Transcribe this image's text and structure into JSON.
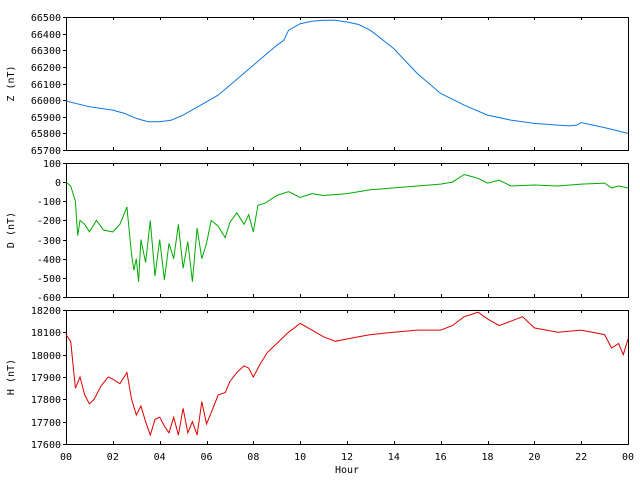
{
  "chart_data": {
    "type": "line",
    "xlabel": "Hour",
    "x_ticks": [
      "00",
      "02",
      "04",
      "06",
      "08",
      "10",
      "12",
      "14",
      "16",
      "18",
      "20",
      "22",
      "00"
    ],
    "xlim_hours": [
      0,
      24
    ],
    "panels": [
      {
        "ylabel": "Z (nT)",
        "color": "#1177dd",
        "ylim": [
          65700,
          66500
        ],
        "yticks": [
          65700,
          65800,
          65900,
          66000,
          66100,
          66200,
          66300,
          66400,
          66500
        ],
        "series": {
          "x": [
            0,
            1,
            2,
            2.5,
            3,
            3.5,
            4,
            4.5,
            5,
            6,
            6.5,
            7,
            8,
            8.5,
            9,
            9.3,
            9.5,
            10,
            10.5,
            11,
            11.5,
            12,
            12.5,
            13,
            14,
            15,
            16,
            17,
            18,
            19,
            20,
            21,
            21.5,
            21.8,
            22,
            22.5,
            23,
            24
          ],
          "y": [
            65995,
            65960,
            65940,
            65920,
            65890,
            65870,
            65870,
            65880,
            65910,
            65990,
            66030,
            66090,
            66210,
            66270,
            66330,
            66360,
            66420,
            66460,
            66475,
            66480,
            66480,
            66470,
            66455,
            66420,
            66310,
            66160,
            66040,
            65970,
            65910,
            65880,
            65860,
            65850,
            65845,
            65850,
            65865,
            65850,
            65835,
            65800
          ]
        }
      },
      {
        "ylabel": "D (nT)",
        "color": "#00aa00",
        "ylim": [
          -600,
          100
        ],
        "yticks": [
          -600,
          -500,
          -400,
          -300,
          -200,
          -100,
          0,
          100
        ],
        "series": {
          "x": [
            0,
            0.2,
            0.4,
            0.5,
            0.6,
            0.8,
            1,
            1.3,
            1.6,
            2,
            2.3,
            2.6,
            2.8,
            2.9,
            3,
            3.1,
            3.2,
            3.4,
            3.6,
            3.8,
            4,
            4.2,
            4.4,
            4.6,
            4.8,
            5,
            5.2,
            5.4,
            5.6,
            5.8,
            6,
            6.2,
            6.5,
            6.8,
            7,
            7.3,
            7.6,
            7.8,
            8,
            8.2,
            8.5,
            9,
            9.5,
            10,
            10.5,
            11,
            12,
            13,
            14,
            15,
            16,
            16.5,
            17,
            17.3,
            17.6,
            18,
            18.5,
            19,
            20,
            21,
            22,
            23,
            23.3,
            23.6,
            24
          ],
          "y": [
            0,
            -20,
            -100,
            -280,
            -200,
            -220,
            -260,
            -200,
            -250,
            -260,
            -220,
            -130,
            -380,
            -460,
            -400,
            -520,
            -300,
            -420,
            -200,
            -490,
            -300,
            -510,
            -320,
            -400,
            -220,
            -450,
            -310,
            -520,
            -240,
            -400,
            -320,
            -200,
            -230,
            -290,
            -210,
            -160,
            -220,
            -170,
            -260,
            -120,
            -110,
            -70,
            -50,
            -80,
            -60,
            -70,
            -60,
            -40,
            -30,
            -20,
            -10,
            0,
            40,
            30,
            20,
            -5,
            10,
            -20,
            -15,
            -20,
            -10,
            -5,
            -30,
            -20,
            -30
          ]
        }
      },
      {
        "ylabel": "H (nT)",
        "color": "#dd0000",
        "ylim": [
          17600,
          18200
        ],
        "yticks": [
          17600,
          17700,
          17800,
          17900,
          18000,
          18100,
          18200
        ],
        "series": {
          "x": [
            0,
            0.2,
            0.4,
            0.6,
            0.8,
            1,
            1.2,
            1.5,
            1.8,
            2,
            2.3,
            2.6,
            2.8,
            3,
            3.2,
            3.4,
            3.6,
            3.8,
            4,
            4.2,
            4.4,
            4.6,
            4.8,
            5,
            5.2,
            5.4,
            5.6,
            5.8,
            6,
            6.2,
            6.5,
            6.8,
            7,
            7.3,
            7.6,
            7.8,
            8,
            8.3,
            8.6,
            9,
            9.5,
            10,
            10.5,
            11,
            11.5,
            12,
            12.5,
            13,
            14,
            15,
            16,
            16.5,
            17,
            17.3,
            17.6,
            18,
            18.5,
            19,
            19.5,
            20,
            21,
            22,
            23,
            23.3,
            23.6,
            23.8,
            24
          ],
          "y": [
            18090,
            18060,
            17850,
            17900,
            17820,
            17780,
            17800,
            17860,
            17900,
            17890,
            17870,
            17920,
            17800,
            17730,
            17770,
            17700,
            17640,
            17710,
            17720,
            17680,
            17650,
            17720,
            17640,
            17760,
            17650,
            17700,
            17640,
            17790,
            17690,
            17740,
            17820,
            17830,
            17880,
            17920,
            17950,
            17940,
            17900,
            17960,
            18010,
            18050,
            18100,
            18140,
            18110,
            18080,
            18060,
            18070,
            18080,
            18090,
            18100,
            18110,
            18110,
            18130,
            18170,
            18180,
            18190,
            18160,
            18130,
            18150,
            18170,
            18120,
            18100,
            18110,
            18090,
            18030,
            18050,
            18000,
            18070
          ]
        }
      }
    ]
  }
}
